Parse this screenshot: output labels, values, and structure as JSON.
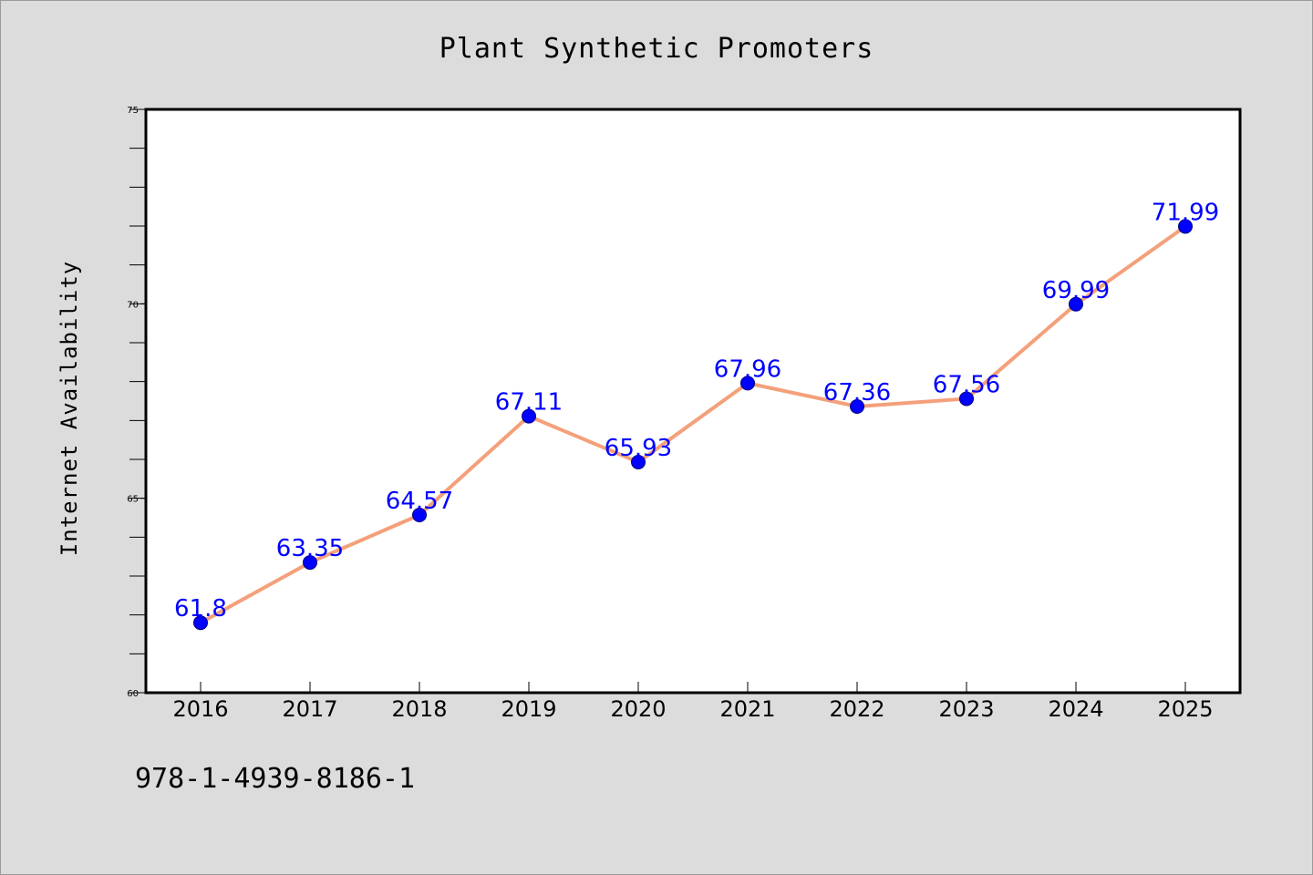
{
  "chart_data": {
    "type": "line",
    "title": "Plant Synthetic Promoters",
    "xlabel": "",
    "ylabel": "Internet Availability",
    "categories": [
      "2016",
      "2017",
      "2018",
      "2019",
      "2020",
      "2021",
      "2022",
      "2023",
      "2024",
      "2025"
    ],
    "series": [
      {
        "values": [
          61.8,
          63.35,
          64.57,
          67.11,
          65.93,
          67.96,
          67.36,
          67.56,
          69.99,
          71.99
        ],
        "data_labels": [
          "61.8",
          "63.35",
          "64.57",
          "67.11",
          "65.93",
          "67.96",
          "67.36",
          "67.56",
          "69.99",
          "71.99"
        ]
      }
    ],
    "ylim": [
      60,
      75
    ],
    "yticks": [
      "60",
      "65",
      "70",
      "75"
    ],
    "grid": false,
    "legend": "none"
  },
  "footnote": "978-1-4939-8186-1",
  "colors": {
    "background": "#dcdcdc",
    "plot_background": "#ffffff",
    "line": "#f4a07a",
    "marker": "#0000ff",
    "data_label": "#0000ff"
  }
}
